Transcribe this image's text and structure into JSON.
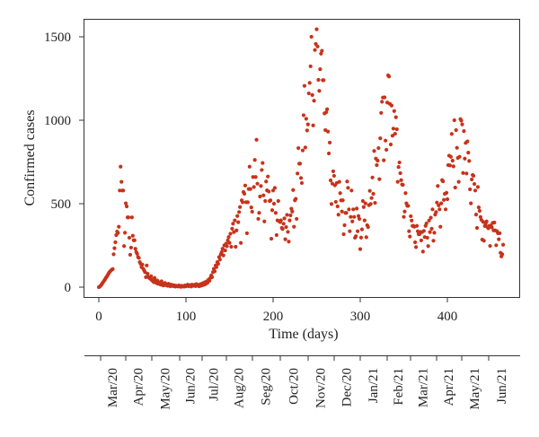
{
  "chart_data": {
    "type": "scatter",
    "title": "",
    "xlabel": "Time (days)",
    "ylabel": "Confirmed cases",
    "xlim": [
      -15,
      485
    ],
    "ylim": [
      -60,
      1600
    ],
    "xticks": [
      0,
      100,
      200,
      300,
      400
    ],
    "yticks": [
      0,
      500,
      1000,
      1500
    ],
    "grid": false,
    "legend": null,
    "marker_color": "#c8321a",
    "series": [
      {
        "name": "Confirmed cases",
        "x_start": 0,
        "x_step": 1,
        "values": [
          0,
          3,
          8,
          15,
          22,
          30,
          38,
          45,
          55,
          62,
          70,
          80,
          88,
          95,
          100,
          105,
          108,
          197,
          233,
          269,
          312,
          333,
          325,
          362,
          579,
          722,
          631,
          579,
          579,
          246,
          326,
          502,
          484,
          418,
          418,
          296,
          194,
          237,
          418,
          308,
          281,
          281,
          230,
          210,
          200,
          180,
          175,
          150,
          140,
          120,
          135,
          110,
          100,
          90,
          60,
          130,
          80,
          60,
          55,
          50,
          65,
          40,
          45,
          30,
          55,
          35,
          25,
          40,
          20,
          30,
          25,
          15,
          35,
          20,
          10,
          18,
          25,
          12,
          15,
          8,
          20,
          10,
          5,
          15,
          8,
          12,
          5,
          10,
          3,
          8,
          6,
          4,
          10,
          5,
          2,
          8,
          4,
          6,
          3,
          10,
          5,
          8,
          15,
          6,
          10,
          12,
          4,
          15,
          8,
          10,
          14,
          6,
          18,
          10,
          12,
          5,
          16,
          8,
          20,
          12,
          25,
          15,
          30,
          20,
          35,
          28,
          45,
          38,
          55,
          70,
          60,
          90,
          110,
          95,
          130,
          120,
          150,
          140,
          180,
          165,
          197,
          210,
          230,
          190,
          250,
          220,
          260,
          245,
          280,
          300,
          265,
          320,
          242,
          350,
          380,
          330,
          400,
          242,
          340,
          426,
          389,
          450,
          480,
          265,
          520,
          509,
          570,
          560,
          609,
          509,
          323,
          509,
          588,
          722,
          588,
          478,
          452,
          660,
          600,
          762,
          660,
          883,
          620,
          409,
          445,
          543,
          606,
          702,
          744,
          550,
          394,
          516,
          633,
          580,
          663,
          573,
          516,
          520,
          290,
          461,
          579,
          500,
          595,
          445,
          312,
          400,
          516,
          395,
          390,
          400,
          355,
          349,
          380,
          412,
          287,
          360,
          433,
          331,
          273,
          400,
          430,
          470,
          453,
          582,
          362,
          520,
          529,
          409,
          681,
          833,
          740,
          740,
          654,
          624,
          819,
          1030,
          1206,
          837,
          1009,
          939,
          975,
          1161,
          1224,
          1323,
          1500,
          1151,
          969,
          1117,
          1421,
          1457,
          1545,
          1442,
          1242,
          1176,
          1306,
          1399,
          1416,
          1240,
          1240,
          1041,
          941,
          1048,
          1066,
          932,
          801,
          866,
          640,
          498,
          620,
          694,
          667,
          610,
          511,
          624,
          484,
          434,
          631,
          563,
          520,
          453,
          520,
          317,
          371,
          445,
          445,
          633,
          595,
          466,
          335,
          421,
          579,
          394,
          466,
          421,
          296,
          305,
          471,
          335,
          426,
          409,
          228,
          297,
          346,
          516,
          480,
          400,
          502,
          299,
          371,
          360,
          491,
          577,
          498,
          534,
          657,
          559,
          816,
          505,
          770,
          731,
          758,
          833,
          647,
          892,
          1044,
          1111,
          1136,
          760,
          1137,
          878,
          823,
          1106,
          1269,
          1262,
          1098,
          855,
          1088,
          907,
          950,
          1055,
          919,
          1018,
          946,
          631,
          720,
          747,
          683,
          641,
          615,
          613,
          421,
          453,
          563,
          502,
          487,
          487,
          335,
          303,
          425,
          399,
          367,
          367,
          362,
          269,
          240,
          367,
          335,
          317,
          317,
          330,
          280,
          330,
          213,
          337,
          300,
          367,
          382,
          296,
          246,
          399,
          330,
          416,
          350,
          466,
          278,
          326,
          435,
          450,
          507,
          606,
          490,
          466,
          362,
          502,
          641,
          634,
          523,
          559,
          466,
          565,
          527,
          731,
          788,
          729,
          781,
          918,
          758,
          724,
          1000,
          597,
          941,
          835,
          774,
          631,
          781,
          1007,
          998,
          975,
          684,
          935,
          770,
          864,
          681,
          873,
          806,
          756,
          586,
          502,
          645,
          672,
          667,
          618,
          579,
          435,
          355,
          600,
          478,
          457,
          420,
          403,
          285,
          391,
          278,
          366,
          380,
          394,
          360,
          353,
          367,
          247,
          370,
          358,
          385,
          340,
          387,
          340,
          251,
          335,
          323,
          287,
          323,
          206,
          184,
          197,
          254
        ]
      }
    ],
    "secondary_axis": {
      "type": "categorical-date",
      "labels": [
        "Mar/20",
        "Apr/20",
        "May/20",
        "Jun/20",
        "Jul/20",
        "Aug/20",
        "Seg/20",
        "Oct/20",
        "Nov/20",
        "Dec/20",
        "Jan/21",
        "Feb/21",
        "Mar/21",
        "Apr/21",
        "May/21",
        "Jun/21"
      ]
    }
  },
  "labels": {
    "xticks": [
      "0",
      "100",
      "200",
      "300",
      "400"
    ],
    "yticks": [
      "0",
      "500",
      "1000",
      "1500"
    ],
    "xlabel": "Time (days)",
    "ylabel": "Confirmed cases"
  }
}
